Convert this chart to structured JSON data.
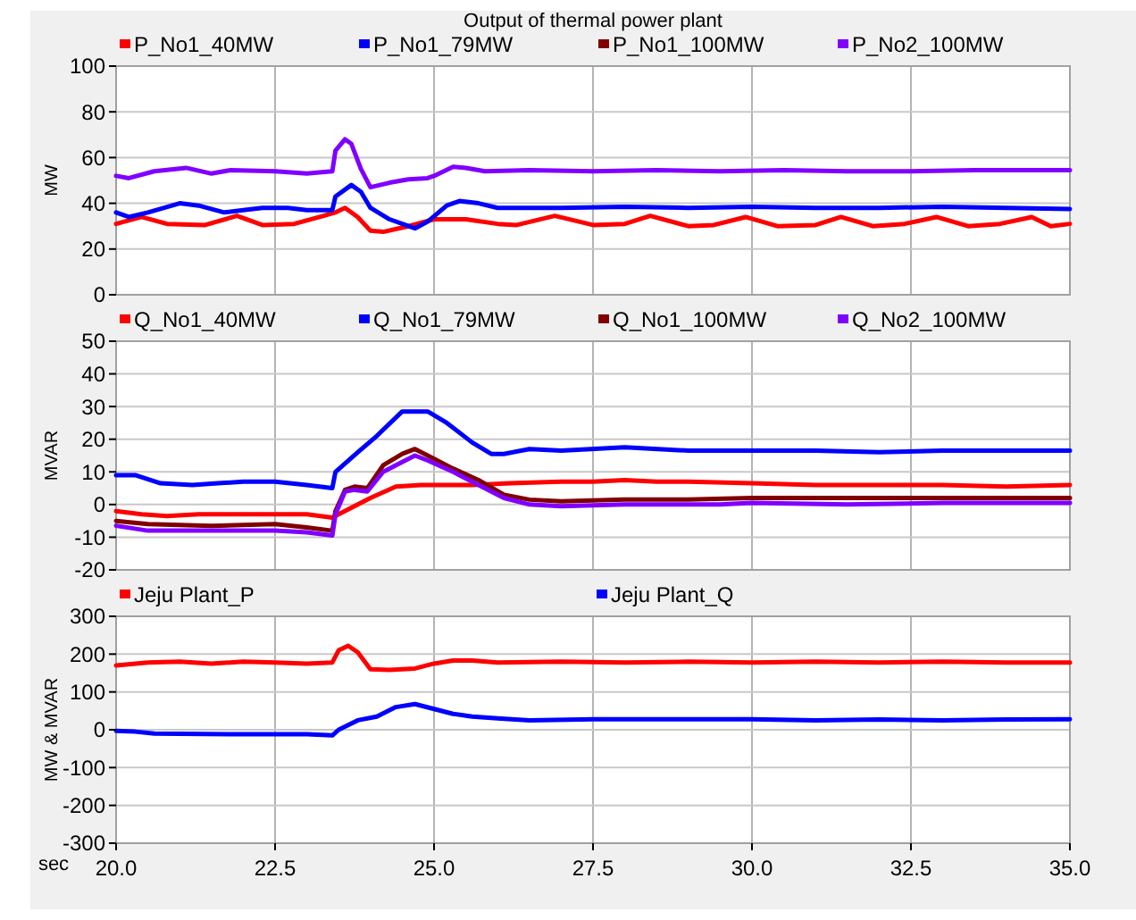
{
  "chart_data": [
    {
      "type": "line",
      "title": "Output of thermal power plant",
      "ylabel": "MW",
      "xlim": [
        20,
        35
      ],
      "xticks": [
        20,
        22.5,
        25,
        27.5,
        30,
        32.5,
        35
      ],
      "ylim": [
        0,
        100
      ],
      "yticks": [
        0,
        20,
        40,
        60,
        80,
        100
      ],
      "grid": true,
      "legend": "top",
      "tick_labels": "y",
      "line_style": "solid",
      "marker": "none",
      "series": [
        {
          "name": "P_No1_40MW",
          "color": "#ff0000",
          "x": [
            20,
            20.4,
            20.8,
            21.4,
            21.9,
            22.3,
            22.8,
            23.2,
            23.45,
            23.6,
            23.8,
            24,
            24.2,
            24.6,
            25,
            25.5,
            26,
            26.3,
            26.9,
            27.5,
            28,
            28.4,
            29,
            29.4,
            29.9,
            30.4,
            31,
            31.4,
            31.9,
            32.4,
            32.9,
            33.4,
            33.9,
            34.4,
            34.7,
            35
          ],
          "values": [
            31,
            34,
            31,
            30.5,
            34.5,
            30.5,
            31,
            34,
            36,
            38,
            34,
            28,
            27.5,
            30,
            33,
            33,
            31,
            30.5,
            34.5,
            30.5,
            31,
            34.5,
            30,
            30.5,
            34,
            30,
            30.5,
            34,
            30,
            31,
            34,
            30,
            31,
            34,
            30,
            31
          ]
        },
        {
          "name": "P_No1_79MW",
          "color": "#0000ff",
          "x": [
            20,
            20.2,
            20.5,
            21,
            21.3,
            21.7,
            22,
            22.3,
            22.7,
            23,
            23.4,
            23.45,
            23.7,
            23.85,
            24,
            24.3,
            24.6,
            24.7,
            24.9,
            25.2,
            25.4,
            25.7,
            26,
            27,
            28,
            29,
            30,
            31,
            32,
            33,
            34,
            35
          ],
          "values": [
            36,
            34,
            36,
            40,
            39,
            36,
            37,
            38,
            38,
            37,
            37,
            43,
            48,
            45,
            38,
            33,
            30,
            29,
            32,
            39,
            41,
            40,
            38,
            38,
            38.5,
            38,
            38.5,
            38,
            38,
            38.5,
            38,
            37.5
          ]
        },
        {
          "name": "P_No1_100MW",
          "color": "#800000"
        },
        {
          "name": "P_No2_100MW",
          "color": "#8000ff",
          "x": [
            20,
            20.2,
            20.6,
            21.1,
            21.5,
            21.8,
            22.5,
            23,
            23.4,
            23.45,
            23.6,
            23.7,
            23.85,
            24,
            24.3,
            24.6,
            24.9,
            25,
            25.3,
            25.5,
            25.8,
            26.5,
            27.5,
            28.5,
            29.5,
            30.5,
            31.5,
            32.5,
            33.5,
            34.5,
            35
          ],
          "values": [
            52,
            51,
            54,
            55.5,
            53,
            54.5,
            54,
            53,
            54,
            63,
            68,
            66,
            55,
            47,
            49,
            50.5,
            51,
            52,
            56,
            55.5,
            54,
            54.5,
            54,
            54.5,
            54,
            54.5,
            54,
            54,
            54.5,
            54.5,
            54.5
          ]
        }
      ]
    },
    {
      "type": "line",
      "ylabel": "MVAR",
      "xlim": [
        20,
        35
      ],
      "xticks": [
        20,
        22.5,
        25,
        27.5,
        30,
        32.5,
        35
      ],
      "ylim": [
        -20,
        50
      ],
      "yticks": [
        -20,
        -10,
        0,
        10,
        20,
        30,
        40,
        50
      ],
      "grid": true,
      "legend": "top",
      "tick_labels": "y",
      "line_style": "solid",
      "marker": "none",
      "series": [
        {
          "name": "Q_No1_40MW",
          "color": "#ff0000",
          "x": [
            20,
            20.4,
            20.8,
            21.3,
            22,
            23,
            23.4,
            23.5,
            24,
            24.4,
            24.8,
            25,
            25.6,
            26.2,
            27,
            27.5,
            28,
            28.5,
            29,
            30,
            31,
            32,
            33,
            34,
            35
          ],
          "values": [
            -2,
            -3,
            -3.5,
            -3,
            -3,
            -3,
            -4,
            -3,
            2,
            5.5,
            6,
            6,
            6,
            6.5,
            7,
            7,
            7.5,
            7,
            7,
            6.5,
            6,
            6,
            6,
            5.5,
            6
          ]
        },
        {
          "name": "Q_No1_79MW",
          "color": "#0000ff",
          "x": [
            20,
            20.3,
            20.7,
            21.2,
            21.6,
            22,
            22.5,
            23,
            23.4,
            23.45,
            23.8,
            24.1,
            24.5,
            24.9,
            25.2,
            25.6,
            25.9,
            26.1,
            26.5,
            27,
            28,
            29,
            30,
            31,
            32,
            33,
            35
          ],
          "values": [
            9,
            9,
            6.5,
            6,
            6.5,
            7,
            7,
            6,
            5,
            10,
            16,
            21,
            28.5,
            28.5,
            25,
            19,
            15.5,
            15.5,
            17,
            16.5,
            17.5,
            16.5,
            16.5,
            16.5,
            16,
            16.5,
            16.5
          ]
        },
        {
          "name": "Q_No1_100MW",
          "color": "#800000",
          "x": [
            20,
            20.5,
            21.5,
            22.5,
            23,
            23.4,
            23.45,
            23.6,
            23.75,
            23.95,
            24.2,
            24.5,
            24.7,
            24.9,
            25.3,
            25.7,
            26.1,
            26.5,
            27,
            28,
            29,
            30,
            31,
            33,
            35
          ],
          "values": [
            -5,
            -6,
            -6.5,
            -6,
            -7,
            -8,
            -2,
            4.5,
            5.5,
            5,
            12,
            15.5,
            17,
            15,
            11,
            7.5,
            3,
            1.5,
            1,
            1.5,
            1.5,
            2,
            2,
            2,
            2
          ]
        },
        {
          "name": "Q_No2_100MW",
          "color": "#8000ff",
          "x": [
            20,
            20.5,
            21.5,
            22.5,
            23,
            23.4,
            23.45,
            23.6,
            23.75,
            23.95,
            24.2,
            24.5,
            24.7,
            24.9,
            25.3,
            25.7,
            26.1,
            26.5,
            27,
            28,
            29.5,
            30,
            31.5,
            33,
            35
          ],
          "values": [
            -6.5,
            -8,
            -8,
            -8,
            -8.5,
            -9.5,
            -3,
            4,
            4.5,
            4,
            10,
            13,
            15,
            13.5,
            10,
            6,
            2,
            0,
            -0.5,
            0,
            0,
            0.5,
            0,
            0.5,
            0.5
          ]
        }
      ]
    },
    {
      "type": "line",
      "xlabel": "sec",
      "ylabel": "MW & MVAR",
      "xlim": [
        20,
        35
      ],
      "xticks": [
        {
          "value": 20,
          "label": "20.0"
        },
        {
          "value": 22.5,
          "label": "22.5"
        },
        {
          "value": 25,
          "label": "25.0"
        },
        {
          "value": 27.5,
          "label": "27.5"
        },
        {
          "value": 30,
          "label": "30.0"
        },
        {
          "value": 32.5,
          "label": "32.5"
        },
        {
          "value": 35,
          "label": "35.0"
        }
      ],
      "ylim": [
        -300,
        300
      ],
      "yticks": [
        -300,
        -200,
        -100,
        0,
        100,
        200,
        300
      ],
      "grid": true,
      "legend": "top",
      "line_style": "solid",
      "marker": "none",
      "series": [
        {
          "name": "Jeju Plant_P",
          "color": "#ff0000",
          "x": [
            20,
            20.5,
            21,
            21.5,
            22,
            22.5,
            23,
            23.4,
            23.5,
            23.65,
            23.8,
            24,
            24.3,
            24.7,
            25,
            25.3,
            25.6,
            26,
            27,
            28,
            29,
            30,
            31,
            32,
            33,
            34,
            35
          ],
          "values": [
            170,
            178,
            180,
            175,
            180,
            178,
            175,
            178,
            210,
            222,
            205,
            160,
            158,
            162,
            175,
            183,
            183,
            178,
            180,
            178,
            180,
            178,
            180,
            178,
            180,
            178,
            178
          ]
        },
        {
          "name": "Jeju Plant_Q",
          "color": "#0000ff",
          "x": [
            20,
            20.3,
            20.6,
            22,
            23,
            23.4,
            23.5,
            23.8,
            24.1,
            24.4,
            24.7,
            25,
            25.3,
            25.6,
            26,
            26.5,
            27.5,
            29,
            30,
            31,
            32,
            33,
            34,
            35
          ],
          "values": [
            -3,
            -5,
            -10,
            -12,
            -12,
            -15,
            0,
            25,
            35,
            60,
            68,
            55,
            42,
            35,
            30,
            25,
            28,
            28,
            28,
            25,
            27,
            25,
            27,
            28
          ]
        }
      ]
    }
  ]
}
